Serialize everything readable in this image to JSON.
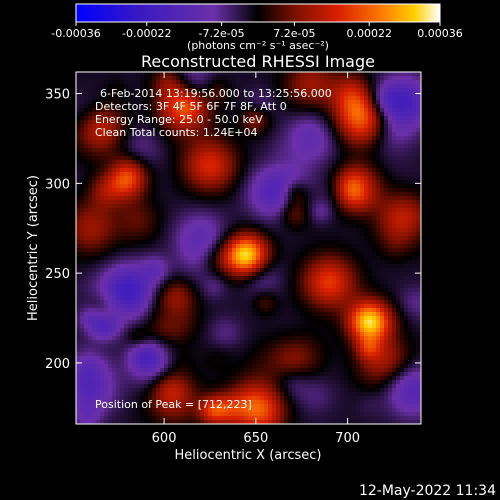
{
  "chart_data": {
    "type": "heatmap",
    "title": "Reconstructed RHESSI Image",
    "xlabel": "Heliocentric X (arcsec)",
    "ylabel": "Heliocentric Y (arcsec)",
    "xlim": [
      552,
      740
    ],
    "ylim": [
      166,
      362
    ],
    "x_ticks": [
      600,
      650,
      700
    ],
    "y_ticks": [
      200,
      250,
      300,
      350
    ],
    "colorbar": {
      "range": [
        -0.00036,
        0.00036
      ],
      "tick_values": [
        -0.00036,
        -0.00022,
        -7.2e-05,
        7.2e-05,
        0.00022,
        0.00036
      ],
      "tick_labels": [
        "-0.00036",
        "-0.00022",
        "-7.2e-05",
        "7.2e-05",
        "0.00022",
        "0.00036"
      ],
      "unit_label": "(photons cm⁻² s⁻¹ asec⁻²)"
    },
    "annotations": [
      "6-Feb-2014 13:19:56.000 to 13:25:56.000",
      "Detectors: 3F 4F 5F 6F 7F 8F, Att 0",
      "Energy Range: 25.0 - 50.0 keV",
      "Clean     Total counts: 1.24E+04"
    ],
    "peak_label": "Position of Peak = [712,223]",
    "peak": {
      "x": 712,
      "y": 223
    },
    "bright_sources": [
      {
        "x": 712,
        "y": 223,
        "value": 0.00034
      },
      {
        "x": 645,
        "y": 260,
        "value": 0.00033
      },
      {
        "x": 705,
        "y": 297,
        "value": 0.00031
      },
      {
        "x": 580,
        "y": 303,
        "value": 0.00026
      },
      {
        "x": 708,
        "y": 335,
        "value": 0.00022
      },
      {
        "x": 650,
        "y": 175,
        "value": 0.00024
      },
      {
        "x": 625,
        "y": 310,
        "value": 0.00018
      },
      {
        "x": 565,
        "y": 330,
        "value": 0.00014
      },
      {
        "x": 612,
        "y": 340,
        "value": 0.00012
      },
      {
        "x": 690,
        "y": 245,
        "value": 0.0002
      },
      {
        "x": 600,
        "y": 225,
        "value": 0.00016
      },
      {
        "x": 560,
        "y": 275,
        "value": 0.00012
      },
      {
        "x": 670,
        "y": 205,
        "value": 0.00014
      },
      {
        "x": 730,
        "y": 280,
        "value": 0.00016
      },
      {
        "x": 605,
        "y": 180,
        "value": 0.00012
      },
      {
        "x": 720,
        "y": 200,
        "value": 0.00014
      },
      {
        "x": 680,
        "y": 355,
        "value": 0.00012
      }
    ],
    "dim_regions": [
      {
        "x": 580,
        "y": 240,
        "value": -0.0002
      },
      {
        "x": 660,
        "y": 295,
        "value": -0.00014
      },
      {
        "x": 730,
        "y": 345,
        "value": -0.00018
      },
      {
        "x": 735,
        "y": 185,
        "value": -0.00014
      },
      {
        "x": 595,
        "y": 200,
        "value": -0.00012
      },
      {
        "x": 560,
        "y": 185,
        "value": -0.0001
      },
      {
        "x": 680,
        "y": 325,
        "value": -0.0001
      },
      {
        "x": 620,
        "y": 270,
        "value": -0.0001
      }
    ]
  },
  "timestamp": "12-May-2022 11:34"
}
